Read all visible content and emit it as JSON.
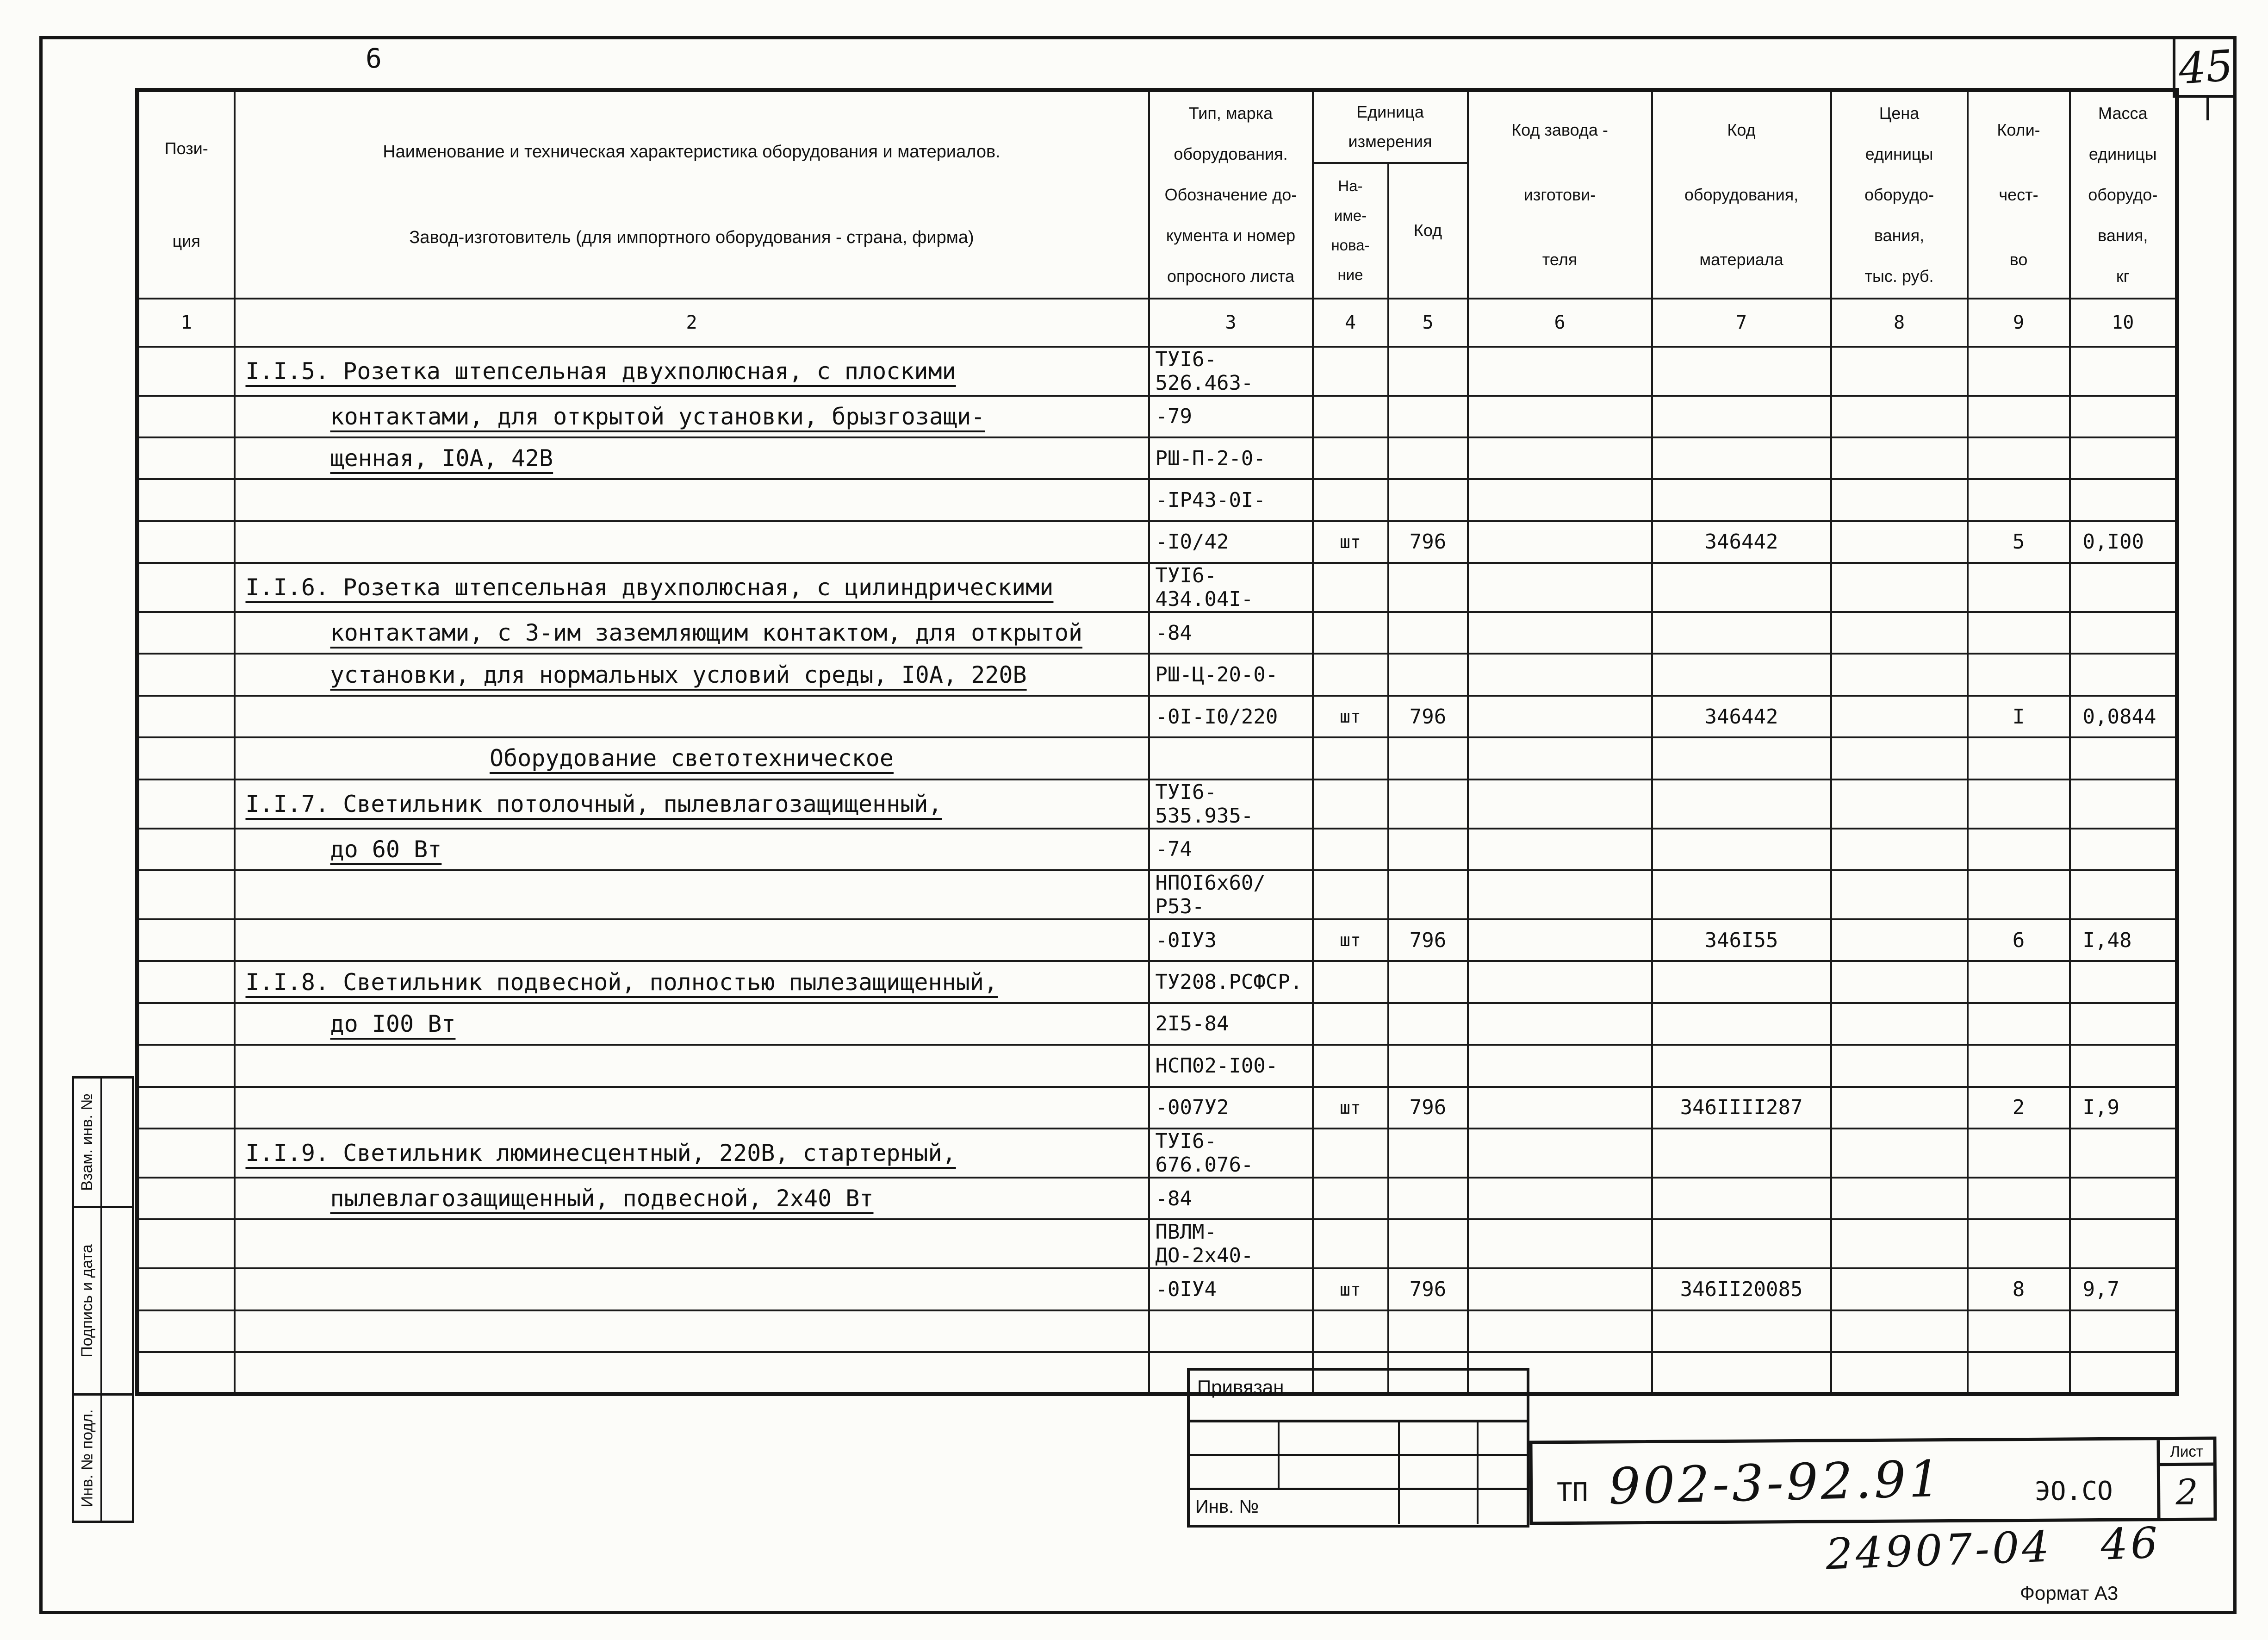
{
  "page": {
    "page_number_top_left": "6",
    "sheet_number_top_right": "45",
    "doc_number_handwritten": "24907-04   46",
    "format_label": "Формат А3"
  },
  "table": {
    "headers": {
      "pos": "Пози-\nция",
      "name": "Наименование и техническая характеристика  оборудования и материалов.\nЗавод-изготовитель  (для импортного оборудования -  страна, фирма)",
      "type": "Тип,    марка\nоборудования.\nОбозначение  до-\nкумента  и  номер\nопросного листа",
      "unit_group": "Единица\nизмерения",
      "unit_name": "На-\nиме-\nнова-\nние",
      "unit_code": "Код",
      "factory_code": "Код  завода -\nизготови-\nтеля",
      "material_code": "Код\nоборудования,\nматериала",
      "price": "Цена\nединицы\nоборудо-\nвания,\nтыс. руб.",
      "quantity": "Коли-\nчест-\nво",
      "mass": "Масса\nединицы\nоборудо-\nвания,\nкг"
    },
    "col_numbers": [
      "1",
      "2",
      "3",
      "4",
      "5",
      "6",
      "7",
      "8",
      "9",
      "10"
    ],
    "rows": [
      {
        "style": "item",
        "cells": [
          "",
          "I.I.5. Розетка штепсельная двухполюсная, с плоскими",
          "ТУI6-526.463-",
          "",
          "",
          "",
          "",
          "",
          "",
          ""
        ]
      },
      {
        "style": "cont",
        "cells": [
          "",
          "контактами, для открытой установки, брызгозащи-",
          "-79",
          "",
          "",
          "",
          "",
          "",
          "",
          ""
        ]
      },
      {
        "style": "cont",
        "cells": [
          "",
          "щенная, I0А, 42В",
          "РШ-П-2-0-",
          "",
          "",
          "",
          "",
          "",
          "",
          ""
        ]
      },
      {
        "style": "item",
        "cells": [
          "",
          "",
          "-IР43-0I-",
          "",
          "",
          "",
          "",
          "",
          "",
          ""
        ]
      },
      {
        "style": "item",
        "cells": [
          "",
          "",
          "-I0/42",
          "шт",
          "796",
          "",
          "346442",
          "",
          "5",
          "0,I00"
        ]
      },
      {
        "style": "item",
        "cells": [
          "",
          "I.I.6. Розетка штепсельная двухполюсная, с цилиндрическими",
          "ТУI6-434.04I-",
          "",
          "",
          "",
          "",
          "",
          "",
          ""
        ]
      },
      {
        "style": "cont",
        "cells": [
          "",
          "контактами, с 3-им заземляющим контактом, для открытой",
          "-84",
          "",
          "",
          "",
          "",
          "",
          "",
          ""
        ]
      },
      {
        "style": "cont",
        "cells": [
          "",
          "установки, для нормальных условий среды, I0А, 220В",
          "РШ-Ц-20-0-",
          "",
          "",
          "",
          "",
          "",
          "",
          ""
        ]
      },
      {
        "style": "item",
        "cells": [
          "",
          "",
          "-0I-I0/220",
          "шт",
          "796",
          "",
          "346442",
          "",
          "I",
          "0,0844"
        ]
      },
      {
        "style": "center",
        "cells": [
          "",
          "Оборудование светотехническое",
          "",
          "",
          "",
          "",
          "",
          "",
          "",
          ""
        ]
      },
      {
        "style": "item",
        "cells": [
          "",
          "I.I.7. Светильник потолочный, пылевлагозащищенный,",
          "ТУI6-535.935-",
          "",
          "",
          "",
          "",
          "",
          "",
          ""
        ]
      },
      {
        "style": "cont",
        "cells": [
          "",
          "до 60 Вт",
          "-74",
          "",
          "",
          "",
          "",
          "",
          "",
          ""
        ]
      },
      {
        "style": "item",
        "cells": [
          "",
          "",
          "НПОI6х60/Р53-",
          "",
          "",
          "",
          "",
          "",
          "",
          ""
        ]
      },
      {
        "style": "item",
        "cells": [
          "",
          "",
          "-0IУЗ",
          "шт",
          "796",
          "",
          "346I55",
          "",
          "6",
          "I,48"
        ]
      },
      {
        "style": "item",
        "cells": [
          "",
          "I.I.8. Светильник подвесной, полностью пылезащищенный,",
          "ТУ208.РСФСР.",
          "",
          "",
          "",
          "",
          "",
          "",
          ""
        ]
      },
      {
        "style": "cont",
        "cells": [
          "",
          "до I00 Вт",
          "2I5-84",
          "",
          "",
          "",
          "",
          "",
          "",
          ""
        ]
      },
      {
        "style": "item",
        "cells": [
          "",
          "",
          "НСП02-I00-",
          "",
          "",
          "",
          "",
          "",
          "",
          ""
        ]
      },
      {
        "style": "item",
        "cells": [
          "",
          "",
          "-007У2",
          "шт",
          "796",
          "",
          "346IIII287",
          "",
          "2",
          "I,9"
        ]
      },
      {
        "style": "item",
        "cells": [
          "",
          "I.I.9. Светильник люминесцентный, 220В, стартерный,",
          "ТУI6-676.076-",
          "",
          "",
          "",
          "",
          "",
          "",
          ""
        ]
      },
      {
        "style": "cont",
        "cells": [
          "",
          "пылевлагозащищенный, подвесной, 2х40 Вт",
          "-84",
          "",
          "",
          "",
          "",
          "",
          "",
          ""
        ]
      },
      {
        "style": "item",
        "cells": [
          "",
          "",
          "ПВЛМ-ДО-2х40-",
          "",
          "",
          "",
          "",
          "",
          "",
          ""
        ]
      },
      {
        "style": "item",
        "cells": [
          "",
          "",
          "-0IУ4",
          "шт",
          "796",
          "",
          "346II20085",
          "",
          "8",
          "9,7"
        ]
      },
      {
        "style": "item",
        "cells": [
          "",
          "",
          "",
          "",
          "",
          "",
          "",
          "",
          "",
          ""
        ]
      },
      {
        "style": "item",
        "cells": [
          "",
          "",
          "",
          "",
          "",
          "",
          "",
          "",
          "",
          ""
        ]
      }
    ]
  },
  "side_stamp": {
    "labels": [
      "Взам. инв. №",
      "Подпись и дата",
      "Инв. № подл."
    ]
  },
  "bind_stamp": {
    "title": "Привязан",
    "inv_label": "Инв. №"
  },
  "title_stamp": {
    "prefix": "ТП",
    "doc_code": "902-3-92.91",
    "series": "ЭО.СО",
    "sheet_label": "Лист",
    "sheet_number": "2"
  }
}
